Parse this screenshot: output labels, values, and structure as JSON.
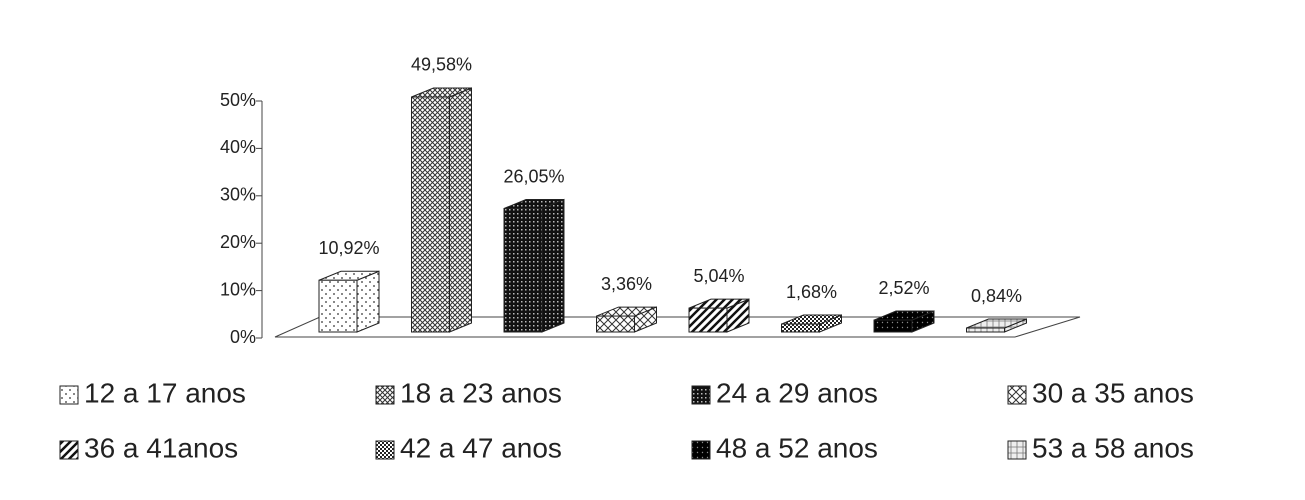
{
  "chart_data": {
    "type": "bar3d",
    "ylim": [
      0,
      50
    ],
    "yticks": [
      {
        "value": 0,
        "label": "0%"
      },
      {
        "value": 10,
        "label": "10%"
      },
      {
        "value": 20,
        "label": "20%"
      },
      {
        "value": 30,
        "label": "30%"
      },
      {
        "value": 40,
        "label": "40%"
      },
      {
        "value": 50,
        "label": "50%"
      }
    ],
    "series": [
      {
        "name": "12 a 17 anos",
        "values": [
          10.92
        ],
        "value_labels": [
          "10,92%"
        ]
      },
      {
        "name": "18 a 23 anos",
        "values": [
          49.58
        ],
        "value_labels": [
          "49,58%"
        ]
      },
      {
        "name": "24 a 29 anos",
        "values": [
          26.05
        ],
        "value_labels": [
          "26,05%"
        ]
      },
      {
        "name": "30 a 35 anos",
        "values": [
          3.36
        ],
        "value_labels": [
          "3,36%"
        ]
      },
      {
        "name": "36 a 41anos",
        "values": [
          5.04
        ],
        "value_labels": [
          "5,04%"
        ]
      },
      {
        "name": "42 a 47 anos",
        "values": [
          1.68
        ],
        "value_labels": [
          "1,68%"
        ]
      },
      {
        "name": "48 a 52 anos",
        "values": [
          2.52
        ],
        "value_labels": [
          "2,52%"
        ]
      },
      {
        "name": "53 a 58 anos",
        "values": [
          0.84
        ],
        "value_labels": [
          "0,84%"
        ]
      }
    ]
  }
}
